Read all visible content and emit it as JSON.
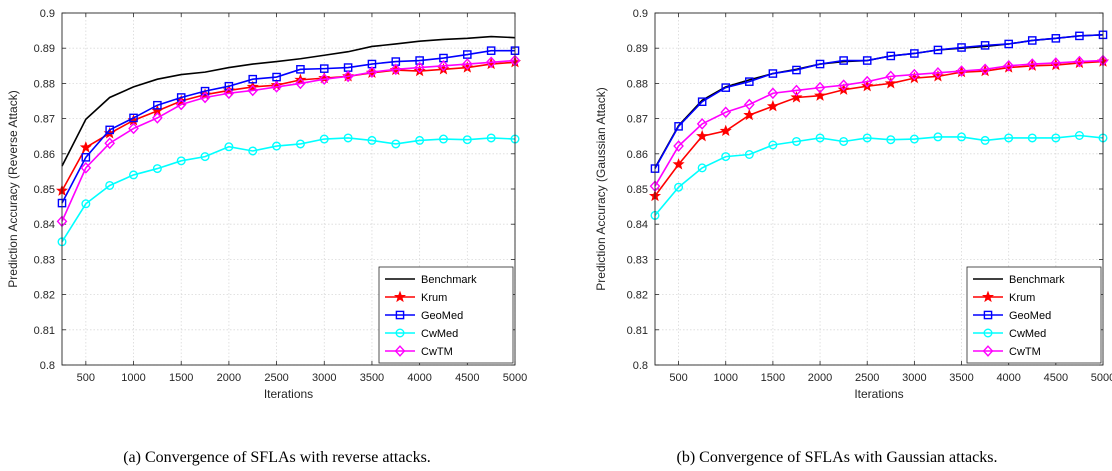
{
  "chart_data": [
    {
      "type": "line",
      "caption": "(a) Convergence of SFLAs with reverse attacks.",
      "xlabel": "Iterations",
      "ylabel": "Prediction Accuracy (Reverse Attack)",
      "xlim": [
        250,
        5000
      ],
      "ylim": [
        0.8,
        0.9
      ],
      "xticks": [
        500,
        1000,
        1500,
        2000,
        2500,
        3000,
        3500,
        4000,
        4500,
        5000
      ],
      "yticks": [
        0.8,
        0.81,
        0.82,
        0.83,
        0.84,
        0.85,
        0.86,
        0.87,
        0.88,
        0.89,
        0.9
      ],
      "grid": true,
      "legend_position": "bottom-right",
      "x_marker": [
        250,
        500,
        750,
        1000,
        1250,
        1500,
        1750,
        2000,
        2250,
        2500,
        2750,
        3000,
        3250,
        3500,
        3750,
        4000,
        4250,
        4500,
        4750,
        5000
      ],
      "series": [
        {
          "name": "Benchmark",
          "color": "#000000",
          "marker": "none",
          "x": [
            250,
            500,
            750,
            1000,
            1250,
            1500,
            1750,
            2000,
            2250,
            2500,
            2750,
            3000,
            3250,
            3500,
            3750,
            4000,
            4250,
            4500,
            4750,
            5000
          ],
          "values": [
            0.8565,
            0.8698,
            0.876,
            0.879,
            0.8812,
            0.8825,
            0.8832,
            0.8845,
            0.8855,
            0.8862,
            0.887,
            0.888,
            0.889,
            0.8905,
            0.8912,
            0.892,
            0.8925,
            0.8928,
            0.8933,
            0.893
          ]
        },
        {
          "name": "Krum",
          "color": "#ff0000",
          "marker": "star",
          "values": [
            0.8495,
            0.8618,
            0.8658,
            0.8695,
            0.8722,
            0.875,
            0.8768,
            0.878,
            0.879,
            0.8795,
            0.881,
            0.8815,
            0.882,
            0.883,
            0.8838,
            0.8835,
            0.884,
            0.8845,
            0.8855,
            0.886
          ]
        },
        {
          "name": "GeoMed",
          "color": "#0000ff",
          "marker": "square",
          "values": [
            0.846,
            0.859,
            0.8668,
            0.8702,
            0.8738,
            0.876,
            0.8778,
            0.8792,
            0.8812,
            0.8818,
            0.884,
            0.8842,
            0.8845,
            0.8855,
            0.8862,
            0.8865,
            0.8872,
            0.8882,
            0.8893,
            0.8893
          ]
        },
        {
          "name": "CwMed",
          "color": "#00ffff",
          "marker": "circle",
          "values": [
            0.835,
            0.8458,
            0.851,
            0.854,
            0.8558,
            0.858,
            0.8592,
            0.862,
            0.8608,
            0.8622,
            0.8628,
            0.8642,
            0.8645,
            0.8638,
            0.8628,
            0.8638,
            0.8642,
            0.864,
            0.8645,
            0.8642
          ]
        },
        {
          "name": "CwTM",
          "color": "#ff00ff",
          "marker": "diamond",
          "values": [
            0.8408,
            0.856,
            0.863,
            0.8672,
            0.8702,
            0.874,
            0.876,
            0.8772,
            0.878,
            0.879,
            0.88,
            0.8812,
            0.882,
            0.8832,
            0.884,
            0.8845,
            0.885,
            0.8855,
            0.886,
            0.8865
          ]
        }
      ]
    },
    {
      "type": "line",
      "caption": "(b) Convergence of SFLAs with Gaussian attacks.",
      "xlabel": "Iterations",
      "ylabel": "Prediction Accuracy (Gaussian Attack)",
      "xlim": [
        250,
        5000
      ],
      "ylim": [
        0.8,
        0.9
      ],
      "xticks": [
        500,
        1000,
        1500,
        2000,
        2500,
        3000,
        3500,
        4000,
        4500,
        5000
      ],
      "yticks": [
        0.8,
        0.81,
        0.82,
        0.83,
        0.84,
        0.85,
        0.86,
        0.87,
        0.88,
        0.89,
        0.9
      ],
      "grid": true,
      "legend_position": "bottom-right",
      "series": [
        {
          "name": "Benchmark",
          "color": "#000000",
          "marker": "none",
          "values": [
            0.856,
            0.868,
            0.8752,
            0.879,
            0.881,
            0.8828,
            0.884,
            0.8855,
            0.8862,
            0.8865,
            0.8878,
            0.8885,
            0.8895,
            0.89,
            0.8905,
            0.8912,
            0.8922,
            0.8928,
            0.8935,
            0.8938
          ]
        },
        {
          "name": "Krum",
          "color": "#ff0000",
          "marker": "star",
          "values": [
            0.848,
            0.857,
            0.865,
            0.8665,
            0.871,
            0.8735,
            0.876,
            0.8765,
            0.8782,
            0.8792,
            0.88,
            0.8815,
            0.882,
            0.8832,
            0.8835,
            0.8845,
            0.885,
            0.8852,
            0.8858,
            0.8862
          ]
        },
        {
          "name": "GeoMed",
          "color": "#0000ff",
          "marker": "square",
          "values": [
            0.8558,
            0.8678,
            0.8748,
            0.8788,
            0.8805,
            0.8828,
            0.8838,
            0.8855,
            0.8865,
            0.8865,
            0.8878,
            0.8885,
            0.8895,
            0.8902,
            0.8908,
            0.8912,
            0.8922,
            0.8928,
            0.8935,
            0.8938
          ]
        },
        {
          "name": "CwMed",
          "color": "#00ffff",
          "marker": "circle",
          "values": [
            0.8425,
            0.8505,
            0.856,
            0.8592,
            0.8598,
            0.8625,
            0.8635,
            0.8645,
            0.8635,
            0.8645,
            0.864,
            0.8642,
            0.8648,
            0.8648,
            0.8638,
            0.8645,
            0.8645,
            0.8645,
            0.8652,
            0.8645
          ]
        },
        {
          "name": "CwTM",
          "color": "#ff00ff",
          "marker": "diamond",
          "values": [
            0.8508,
            0.8622,
            0.8685,
            0.8718,
            0.874,
            0.8772,
            0.878,
            0.8788,
            0.8795,
            0.8805,
            0.882,
            0.8825,
            0.883,
            0.8835,
            0.884,
            0.885,
            0.8855,
            0.8858,
            0.8862,
            0.8865
          ]
        }
      ]
    }
  ]
}
